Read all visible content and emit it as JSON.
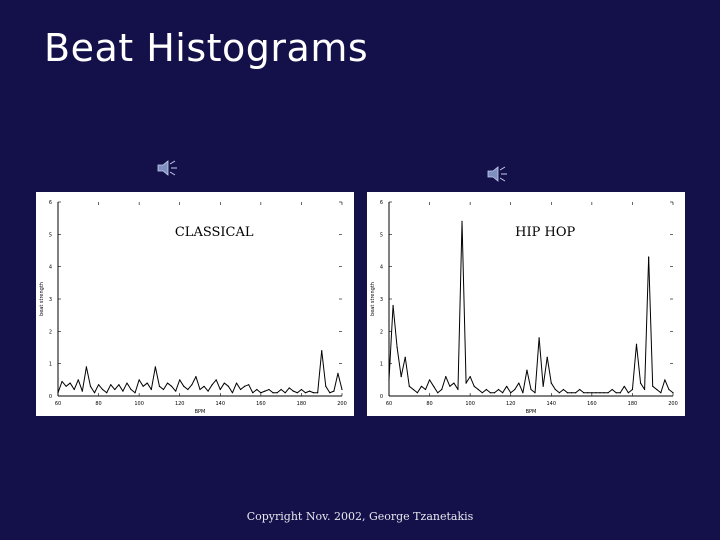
{
  "title": "Beat Histograms",
  "footer": "Copyright Nov. 2002, George Tzanetakis",
  "icons": [
    "speaker-icon",
    "speaker-icon"
  ],
  "colors": {
    "background": "#14104a",
    "panel": "#ffffff",
    "line": "#000000"
  },
  "chart_data": [
    {
      "type": "line",
      "title": "CLASSICAL",
      "xlabel": "BPM",
      "ylabel": "beat strength",
      "xlim": [
        60,
        200
      ],
      "ylim": [
        0,
        6
      ],
      "xticks": [
        "60",
        "80",
        "100",
        "120",
        "140",
        "160",
        "180",
        "200"
      ],
      "yticks": [
        "0",
        "1",
        "2",
        "3",
        "4",
        "5",
        "6"
      ],
      "x": [
        60,
        62,
        64,
        66,
        68,
        70,
        72,
        74,
        76,
        78,
        80,
        82,
        84,
        86,
        88,
        90,
        92,
        94,
        96,
        98,
        100,
        102,
        104,
        106,
        108,
        110,
        112,
        114,
        116,
        118,
        120,
        122,
        124,
        126,
        128,
        130,
        132,
        134,
        136,
        138,
        140,
        142,
        144,
        146,
        148,
        150,
        152,
        154,
        156,
        158,
        160,
        162,
        164,
        166,
        168,
        170,
        172,
        174,
        176,
        178,
        180,
        182,
        184,
        186,
        188,
        190,
        192,
        194,
        196,
        198,
        200
      ],
      "values": [
        0.1,
        0.45,
        0.3,
        0.4,
        0.2,
        0.5,
        0.15,
        0.9,
        0.3,
        0.1,
        0.35,
        0.2,
        0.1,
        0.35,
        0.2,
        0.35,
        0.15,
        0.4,
        0.2,
        0.1,
        0.5,
        0.3,
        0.4,
        0.2,
        0.9,
        0.3,
        0.2,
        0.4,
        0.3,
        0.15,
        0.5,
        0.3,
        0.2,
        0.35,
        0.6,
        0.2,
        0.3,
        0.15,
        0.35,
        0.5,
        0.2,
        0.4,
        0.3,
        0.1,
        0.4,
        0.2,
        0.3,
        0.35,
        0.1,
        0.2,
        0.1,
        0.15,
        0.2,
        0.1,
        0.1,
        0.2,
        0.1,
        0.25,
        0.15,
        0.1,
        0.2,
        0.1,
        0.15,
        0.1,
        0.1,
        1.4,
        0.3,
        0.1,
        0.15,
        0.7,
        0.2
      ]
    },
    {
      "type": "line",
      "title": "HIP HOP",
      "xlabel": "BPM",
      "ylabel": "beat strength",
      "xlim": [
        60,
        200
      ],
      "ylim": [
        0,
        6
      ],
      "xticks": [
        "60",
        "80",
        "100",
        "120",
        "140",
        "160",
        "180",
        "200"
      ],
      "yticks": [
        "0",
        "1",
        "2",
        "3",
        "4",
        "5",
        "6"
      ],
      "x": [
        60,
        62,
        64,
        66,
        68,
        70,
        72,
        74,
        76,
        78,
        80,
        82,
        84,
        86,
        88,
        90,
        92,
        94,
        96,
        98,
        100,
        102,
        104,
        106,
        108,
        110,
        112,
        114,
        116,
        118,
        120,
        122,
        124,
        126,
        128,
        130,
        132,
        134,
        136,
        138,
        140,
        142,
        144,
        146,
        148,
        150,
        152,
        154,
        156,
        158,
        160,
        162,
        164,
        166,
        168,
        170,
        172,
        174,
        176,
        178,
        180,
        182,
        184,
        186,
        188,
        190,
        192,
        194,
        196,
        198,
        200
      ],
      "values": [
        0.5,
        2.8,
        1.5,
        0.6,
        1.2,
        0.3,
        0.2,
        0.1,
        0.3,
        0.2,
        0.5,
        0.3,
        0.1,
        0.2,
        0.6,
        0.3,
        0.4,
        0.2,
        5.4,
        0.4,
        0.6,
        0.3,
        0.2,
        0.1,
        0.2,
        0.1,
        0.1,
        0.2,
        0.1,
        0.3,
        0.1,
        0.2,
        0.4,
        0.1,
        0.8,
        0.2,
        0.1,
        1.8,
        0.3,
        1.2,
        0.4,
        0.2,
        0.1,
        0.2,
        0.1,
        0.1,
        0.1,
        0.2,
        0.1,
        0.1,
        0.1,
        0.1,
        0.1,
        0.1,
        0.1,
        0.2,
        0.1,
        0.1,
        0.3,
        0.1,
        0.2,
        1.6,
        0.4,
        0.2,
        4.3,
        0.3,
        0.2,
        0.1,
        0.5,
        0.2,
        0.1
      ]
    }
  ]
}
